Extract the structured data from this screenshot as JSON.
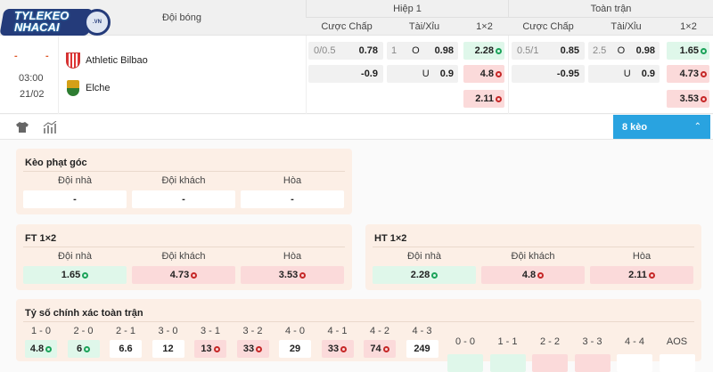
{
  "logo": {
    "text": "TYLEKEO NHACAI",
    "badge": ".VN"
  },
  "header": {
    "team_col": "Đội bóng",
    "half": "Hiệp 1",
    "full": "Toàn trận",
    "sub": [
      "Cược Chấp",
      "Tài/Xỉu",
      "1×2",
      "Cược Chấp",
      "Tài/Xỉu",
      "1×2"
    ]
  },
  "match": {
    "score_home": "-",
    "score_away": "-",
    "time": "03:00",
    "date": "21/02",
    "home": "Athletic Bilbao",
    "away": "Elche",
    "h1": {
      "hcap_line": "0/0.5",
      "hcap_home": "0.78",
      "hcap_away": "-0.9",
      "ou_line": "1",
      "over_label": "O",
      "over": "0.98",
      "under_label": "U",
      "under": "0.9",
      "x_home": "2.28",
      "x_away": "4.8",
      "x_draw": "2.11"
    },
    "ft": {
      "hcap_line": "0.5/1",
      "hcap_home": "0.85",
      "hcap_away": "-0.95",
      "ou_line": "2.5",
      "over_label": "O",
      "over": "0.98",
      "under_label": "U",
      "under": "0.9",
      "x_home": "1.65",
      "x_away": "4.73",
      "x_draw": "3.53"
    }
  },
  "toolbar": {
    "more_label": "8 kèo",
    "icons": [
      "shirt-icon",
      "stats-icon"
    ]
  },
  "colors": {
    "accent": "#29a3e0",
    "up": "#dff7ea",
    "down": "#fbdada"
  },
  "corner": {
    "title": "Kèo phạt góc",
    "labels": [
      "Đội nhà",
      "Đội khách",
      "Hòa"
    ],
    "values": [
      "-",
      "-",
      "-"
    ]
  },
  "ft1x2": {
    "title": "FT 1×2",
    "labels": [
      "Đội nhà",
      "Đội khách",
      "Hòa"
    ],
    "values": [
      "1.65",
      "4.73",
      "3.53"
    ],
    "trend": [
      "up",
      "down",
      "down"
    ]
  },
  "ht1x2": {
    "title": "HT 1×2",
    "labels": [
      "Đội nhà",
      "Đội khách",
      "Hòa"
    ],
    "values": [
      "2.28",
      "4.8",
      "2.11"
    ],
    "trend": [
      "up",
      "down",
      "down"
    ]
  },
  "exact": {
    "title": "Tỷ số chính xác toàn trận",
    "home": [
      {
        "s": "1 - 0",
        "v": "4.8",
        "t": "up"
      },
      {
        "s": "2 - 0",
        "v": "6",
        "t": "up"
      },
      {
        "s": "2 - 1",
        "v": "6.6",
        "t": ""
      },
      {
        "s": "3 - 0",
        "v": "12",
        "t": ""
      },
      {
        "s": "3 - 1",
        "v": "13",
        "t": "down"
      },
      {
        "s": "3 - 2",
        "v": "33",
        "t": "down"
      },
      {
        "s": "4 - 0",
        "v": "29",
        "t": ""
      },
      {
        "s": "4 - 1",
        "v": "33",
        "t": "down"
      },
      {
        "s": "4 - 2",
        "v": "74",
        "t": "down"
      },
      {
        "s": "4 - 3",
        "v": "249",
        "t": ""
      }
    ],
    "draw": [
      {
        "s": "0 - 0",
        "t": "up"
      },
      {
        "s": "1 - 1",
        "t": "up"
      },
      {
        "s": "2 - 2",
        "t": "down"
      },
      {
        "s": "3 - 3",
        "t": "down"
      },
      {
        "s": "4 - 4",
        "t": ""
      },
      {
        "s": "AOS",
        "t": ""
      }
    ]
  }
}
